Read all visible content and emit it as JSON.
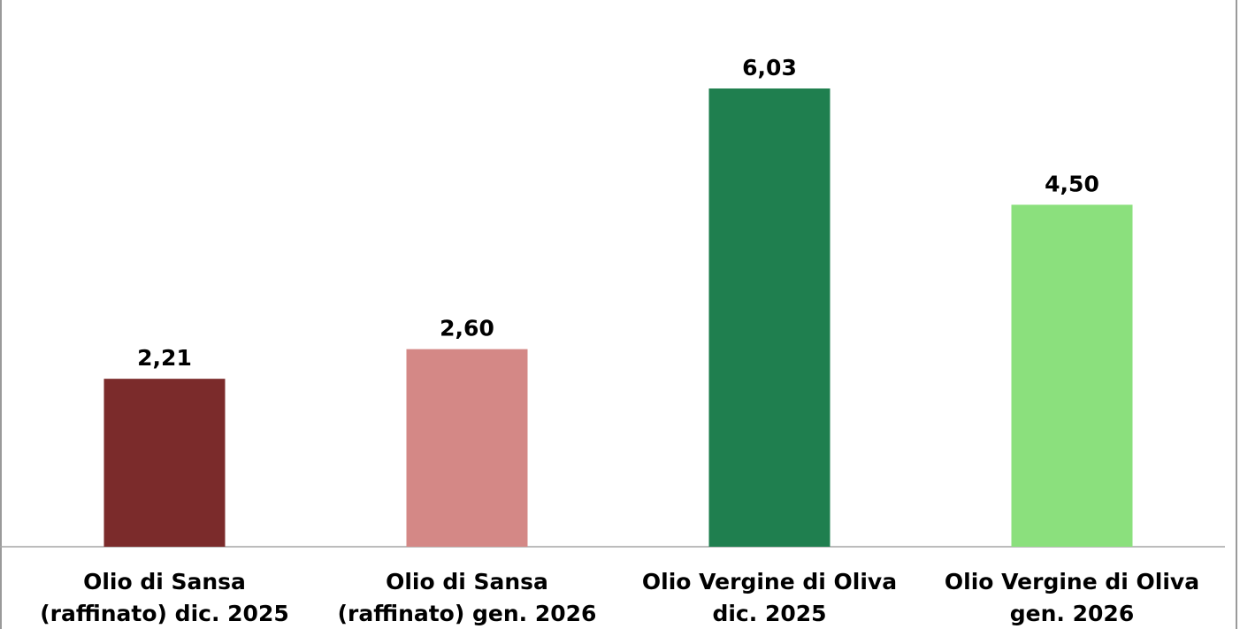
{
  "chart_data": {
    "type": "bar",
    "categories": [
      [
        "Olio di Sansa",
        "(raffinato) dic. 2025"
      ],
      [
        "Olio di Sansa",
        "(raffinato) gen. 2026"
      ],
      [
        "Olio Vergine di Oliva",
        "dic. 2025"
      ],
      [
        "Olio Vergine di Oliva",
        "gen. 2026"
      ]
    ],
    "values": [
      2.21,
      2.6,
      6.03,
      4.5
    ],
    "value_labels": [
      "2,21",
      "2,60",
      "6,03",
      "4,50"
    ],
    "colors": [
      "#7b2b2b",
      "#d48886",
      "#1f7f4f",
      "#8be07d"
    ]
  }
}
